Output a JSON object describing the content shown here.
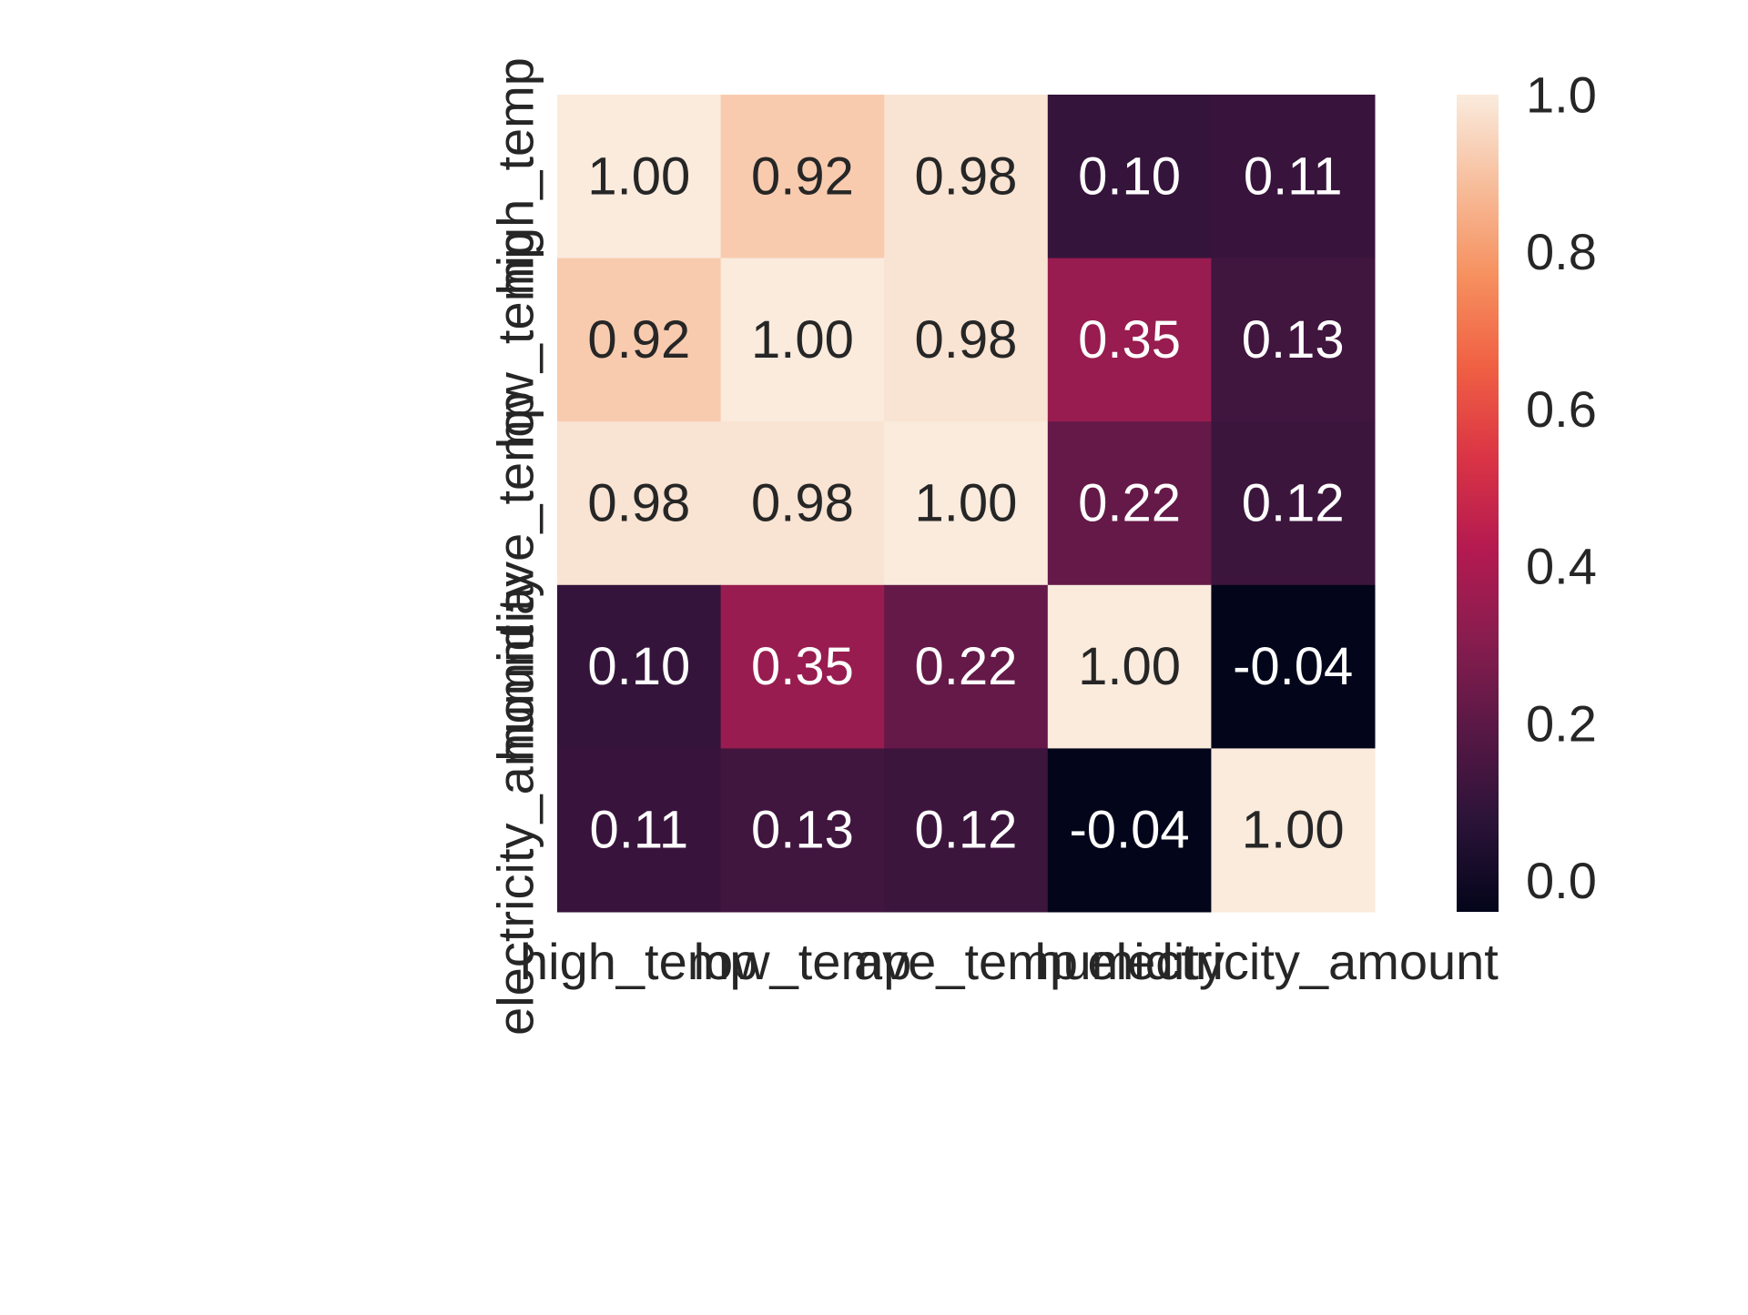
{
  "chart_data": {
    "type": "heatmap",
    "title": "",
    "xlabel": "",
    "ylabel": "",
    "x_categories": [
      "high_temp",
      "low_temp",
      "ave_temp",
      "humidity",
      "electricity_amount"
    ],
    "y_categories": [
      "high_temp",
      "low_temp",
      "ave_temp",
      "humidity",
      "electricity_amount"
    ],
    "values": [
      [
        1.0,
        0.92,
        0.98,
        0.1,
        0.11
      ],
      [
        0.92,
        1.0,
        0.98,
        0.35,
        0.13
      ],
      [
        0.98,
        0.98,
        1.0,
        0.22,
        0.12
      ],
      [
        0.1,
        0.35,
        0.22,
        1.0,
        -0.04
      ],
      [
        0.11,
        0.13,
        0.12,
        -0.04,
        1.0
      ]
    ],
    "cell_labels": [
      [
        "1.00",
        "0.92",
        "0.98",
        "0.10",
        "0.11"
      ],
      [
        "0.92",
        "1.00",
        "0.98",
        "0.35",
        "0.13"
      ],
      [
        "0.98",
        "0.98",
        "1.00",
        "0.22",
        "0.12"
      ],
      [
        "0.10",
        "0.35",
        "0.22",
        "1.00",
        "-0.04"
      ],
      [
        "0.11",
        "0.13",
        "0.12",
        "-0.04",
        "1.00"
      ]
    ],
    "colorbar": {
      "range": [
        -0.04,
        1.0
      ],
      "ticks": [
        0.0,
        0.2,
        0.4,
        0.6,
        0.8,
        1.0
      ],
      "tick_labels": [
        "0.0",
        "0.2",
        "0.4",
        "0.6",
        "0.8",
        "1.0"
      ]
    },
    "colormap": "rocket",
    "colormap_stops": [
      "#03051a",
      "#2b1338",
      "#581845",
      "#881d4f",
      "#b41a50",
      "#da3445",
      "#f06043",
      "#f6905f",
      "#f7bd9b",
      "#faebdd"
    ],
    "light_text_color": "#ffffff",
    "dark_text_color": "#262626"
  }
}
